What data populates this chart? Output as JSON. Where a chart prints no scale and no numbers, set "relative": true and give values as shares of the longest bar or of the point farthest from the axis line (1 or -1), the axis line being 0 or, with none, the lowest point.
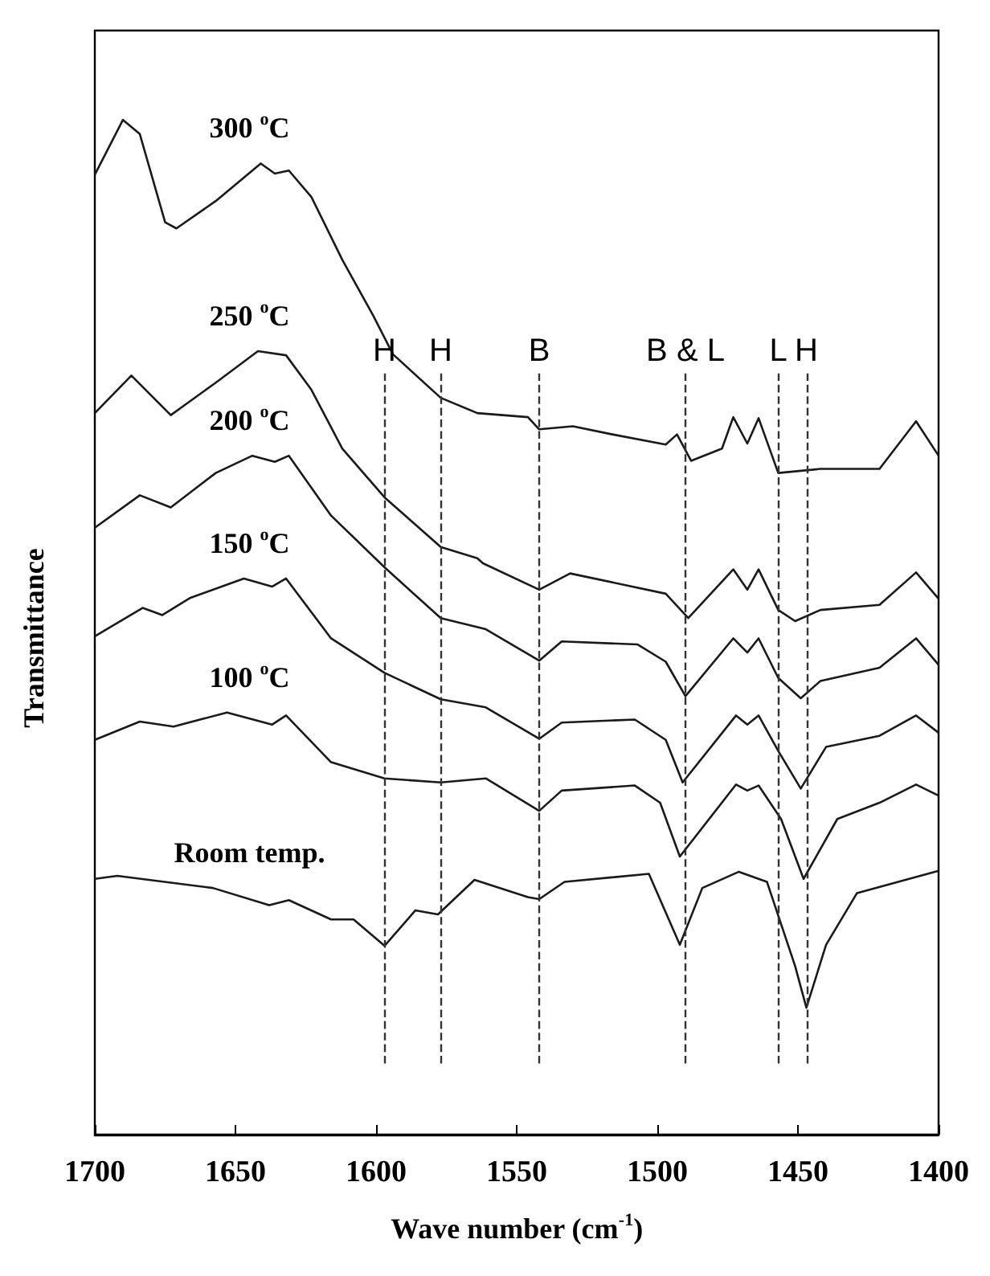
{
  "chart_data": {
    "type": "line",
    "relative": true,
    "xlabel": "Wave number (cm$^{-1}$)",
    "ylabel": "Transmittance",
    "xlim": [
      1700,
      1400
    ],
    "xticks": [
      1700,
      1650,
      1600,
      1550,
      1500,
      1450,
      1400
    ],
    "legend": false,
    "grid": false,
    "marker": "none",
    "line_style": "solid",
    "series": [
      {
        "name": "300 $^{o}$C",
        "color": "#1a1a1a",
        "x": [
          1700,
          1690,
          1684,
          1675,
          1671,
          1657,
          1641,
          1636,
          1631,
          1623,
          1612,
          1601,
          1594,
          1577,
          1564,
          1546,
          1542,
          1530,
          1516,
          1497,
          1493,
          1488,
          1477,
          1473,
          1468,
          1464,
          1457,
          1442,
          1421,
          1408,
          1400
        ],
        "values": [
          0.946,
          1.0,
          0.986,
          0.899,
          0.893,
          0.92,
          0.957,
          0.947,
          0.95,
          0.924,
          0.862,
          0.807,
          0.769,
          0.726,
          0.711,
          0.707,
          0.695,
          0.698,
          0.69,
          0.68,
          0.69,
          0.664,
          0.676,
          0.707,
          0.681,
          0.706,
          0.652,
          0.656,
          0.656,
          0.703,
          0.669
        ]
      },
      {
        "name": "250 $^{o}$C",
        "color": "#1a1a1a",
        "x": [
          1700,
          1687,
          1673,
          1657,
          1642,
          1632,
          1623,
          1612,
          1597,
          1577,
          1564,
          1562,
          1542,
          1531,
          1497,
          1489,
          1473,
          1468,
          1464,
          1457,
          1451,
          1442,
          1421,
          1408,
          1400
        ],
        "values": [
          0.711,
          0.748,
          0.709,
          0.741,
          0.772,
          0.768,
          0.734,
          0.676,
          0.628,
          0.579,
          0.568,
          0.563,
          0.537,
          0.553,
          0.533,
          0.509,
          0.557,
          0.537,
          0.557,
          0.517,
          0.506,
          0.517,
          0.522,
          0.554,
          0.528
        ]
      },
      {
        "name": "200 $^{o}$C",
        "color": "#1a1a1a",
        "x": [
          1700,
          1684,
          1673,
          1657,
          1644,
          1636,
          1631,
          1616,
          1597,
          1577,
          1561,
          1542,
          1534,
          1507,
          1497,
          1490,
          1473,
          1468,
          1464,
          1457,
          1449,
          1442,
          1421,
          1408,
          1400
        ],
        "values": [
          0.598,
          0.63,
          0.618,
          0.652,
          0.669,
          0.663,
          0.669,
          0.61,
          0.559,
          0.509,
          0.498,
          0.467,
          0.486,
          0.483,
          0.466,
          0.432,
          0.489,
          0.475,
          0.489,
          0.45,
          0.43,
          0.447,
          0.46,
          0.489,
          0.463
        ]
      },
      {
        "name": "150 $^{o}$C",
        "color": "#1a1a1a",
        "x": [
          1700,
          1683,
          1676,
          1666,
          1647,
          1637,
          1632,
          1616,
          1597,
          1577,
          1561,
          1542,
          1534,
          1508,
          1497,
          1491,
          1472,
          1468,
          1464,
          1457,
          1449,
          1440,
          1421,
          1408,
          1400
        ],
        "values": [
          0.491,
          0.519,
          0.512,
          0.529,
          0.548,
          0.54,
          0.548,
          0.489,
          0.455,
          0.429,
          0.421,
          0.39,
          0.406,
          0.409,
          0.389,
          0.347,
          0.413,
          0.404,
          0.413,
          0.378,
          0.341,
          0.382,
          0.393,
          0.413,
          0.396
        ]
      },
      {
        "name": "100 $^{o}$C",
        "color": "#1a1a1a",
        "x": [
          1700,
          1684,
          1672,
          1653,
          1637,
          1632,
          1616,
          1597,
          1577,
          1561,
          1542,
          1534,
          1508,
          1499,
          1492,
          1472,
          1468,
          1464,
          1456,
          1448,
          1436,
          1421,
          1408,
          1400
        ],
        "values": [
          0.389,
          0.407,
          0.402,
          0.416,
          0.404,
          0.413,
          0.367,
          0.351,
          0.347,
          0.351,
          0.319,
          0.339,
          0.344,
          0.327,
          0.274,
          0.345,
          0.339,
          0.344,
          0.311,
          0.252,
          0.311,
          0.327,
          0.345,
          0.334
        ]
      },
      {
        "name": "Room temp.",
        "color": "#1a1a1a",
        "x": [
          1700,
          1692,
          1658,
          1638,
          1631,
          1616,
          1608,
          1597,
          1586,
          1578,
          1565,
          1546,
          1542,
          1533,
          1503,
          1492,
          1484,
          1471,
          1461,
          1451,
          1447,
          1440,
          1429,
          1400
        ],
        "values": [
          0.252,
          0.255,
          0.243,
          0.226,
          0.231,
          0.212,
          0.212,
          0.186,
          0.221,
          0.217,
          0.251,
          0.234,
          0.232,
          0.249,
          0.257,
          0.187,
          0.243,
          0.259,
          0.249,
          0.166,
          0.125,
          0.187,
          0.238,
          0.26
        ]
      }
    ],
    "ref_lines": [
      {
        "axis": "x",
        "value": 1597,
        "label": "H",
        "line_style": "dashed",
        "color": "#333333"
      },
      {
        "axis": "x",
        "value": 1577,
        "label": "H",
        "line_style": "dashed",
        "color": "#333333"
      },
      {
        "axis": "x",
        "value": 1542,
        "label": "B",
        "line_style": "dashed",
        "color": "#333333"
      },
      {
        "axis": "x",
        "value": 1490,
        "label": "B & L",
        "line_style": "dashed",
        "color": "#333333"
      },
      {
        "axis": "x",
        "value": 1457,
        "label": "L",
        "line_style": "dashed",
        "color": "#333333"
      },
      {
        "axis": "x",
        "value": 1447,
        "label": "H",
        "line_style": "dashed",
        "color": "#333333"
      }
    ]
  }
}
